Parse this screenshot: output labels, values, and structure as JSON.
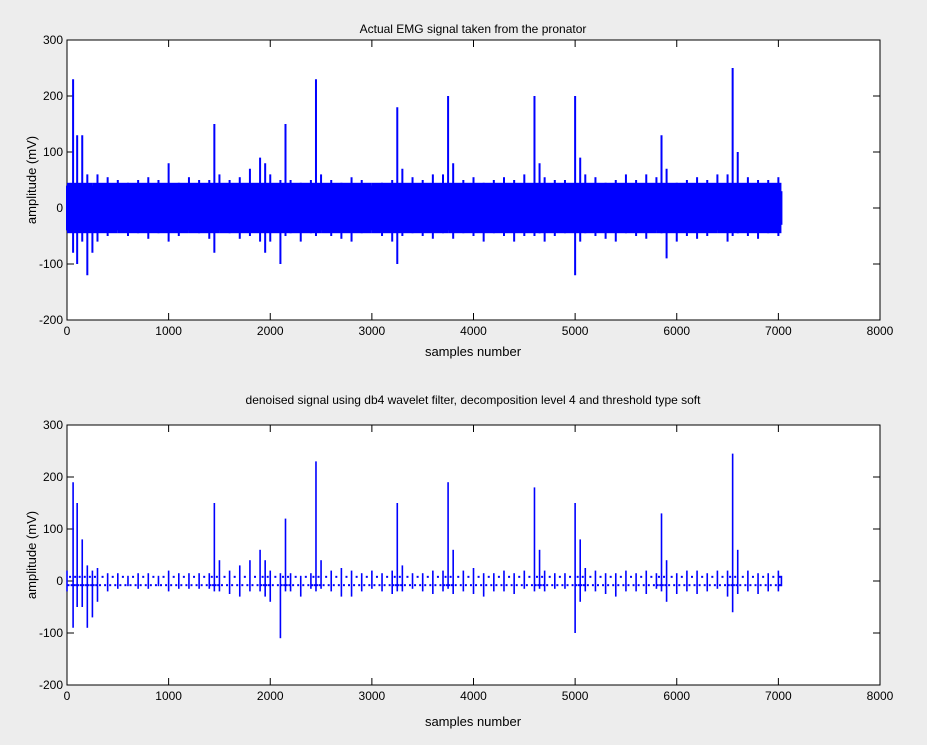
{
  "chart_data": [
    {
      "type": "line",
      "title": "Actual EMG signal taken from the pronator",
      "xlabel": "samples number",
      "ylabel": "amplitude (mV)",
      "xlim": [
        0,
        8000
      ],
      "ylim": [
        -200,
        300
      ],
      "xticks": [
        0,
        1000,
        2000,
        3000,
        4000,
        5000,
        6000,
        7000,
        8000
      ],
      "yticks": [
        -200,
        -100,
        0,
        100,
        200,
        300
      ],
      "grid": false,
      "color": "#0000ff",
      "style": "dense-line",
      "series": [
        {
          "x": [
            0,
            60,
            100,
            150,
            200,
            250,
            300,
            400,
            500,
            600,
            700,
            800,
            900,
            1000,
            1100,
            1200,
            1300,
            1400,
            1450,
            1500,
            1600,
            1700,
            1800,
            1900,
            1950,
            2000,
            2100,
            2150,
            2200,
            2300,
            2400,
            2450,
            2500,
            2600,
            2700,
            2800,
            2900,
            3000,
            3100,
            3200,
            3250,
            3300,
            3400,
            3500,
            3600,
            3700,
            3750,
            3800,
            3900,
            4000,
            4100,
            4200,
            4300,
            4400,
            4500,
            4600,
            4650,
            4700,
            4800,
            4900,
            5000,
            5050,
            5100,
            5200,
            5300,
            5400,
            5500,
            5600,
            5700,
            5800,
            5850,
            5900,
            6000,
            6100,
            6200,
            6300,
            6400,
            6500,
            6550,
            6600,
            6700,
            6800,
            6900,
            7000,
            7030
          ],
          "y_max": [
            40,
            230,
            130,
            130,
            60,
            40,
            60,
            55,
            50,
            45,
            50,
            55,
            50,
            80,
            45,
            55,
            50,
            50,
            150,
            60,
            50,
            55,
            70,
            90,
            80,
            60,
            50,
            150,
            50,
            45,
            50,
            230,
            60,
            50,
            45,
            55,
            50,
            40,
            45,
            50,
            180,
            70,
            55,
            50,
            60,
            60,
            200,
            80,
            50,
            55,
            45,
            50,
            55,
            50,
            60,
            200,
            80,
            55,
            50,
            50,
            200,
            90,
            60,
            55,
            45,
            50,
            60,
            50,
            60,
            55,
            130,
            70,
            45,
            50,
            55,
            50,
            60,
            60,
            250,
            100,
            55,
            50,
            50,
            55,
            30
          ],
          "y_min": [
            -40,
            -80,
            -100,
            -60,
            -120,
            -80,
            -60,
            -50,
            -40,
            -50,
            -45,
            -55,
            -45,
            -60,
            -50,
            -40,
            -45,
            -55,
            -80,
            -40,
            -45,
            -55,
            -50,
            -60,
            -80,
            -60,
            -100,
            -50,
            -45,
            -60,
            -45,
            -50,
            -40,
            -50,
            -55,
            -60,
            -45,
            -40,
            -50,
            -60,
            -100,
            -50,
            -45,
            -50,
            -55,
            -45,
            -40,
            -55,
            -45,
            -50,
            -60,
            -45,
            -50,
            -60,
            -50,
            -50,
            -45,
            -60,
            -50,
            -45,
            -120,
            -60,
            -45,
            -50,
            -55,
            -60,
            -45,
            -50,
            -55,
            -40,
            -45,
            -90,
            -60,
            -50,
            -55,
            -50,
            -40,
            -60,
            -50,
            -45,
            -50,
            -55,
            -45,
            -50,
            -30
          ]
        }
      ]
    },
    {
      "type": "scatter",
      "title": "denoised signal using db4 wavelet filter, decomposition level 4 and threshold type soft",
      "xlabel": "samples number",
      "ylabel": "amplitude (mV)",
      "xlim": [
        0,
        8000
      ],
      "ylim": [
        -200,
        300
      ],
      "xticks": [
        0,
        1000,
        2000,
        3000,
        4000,
        5000,
        6000,
        7000,
        8000
      ],
      "yticks": [
        -200,
        -100,
        0,
        100,
        200,
        300
      ],
      "grid": false,
      "color": "#0000ff",
      "style": "sparse-dots",
      "series": [
        {
          "x": [
            0,
            60,
            100,
            150,
            200,
            250,
            300,
            400,
            500,
            600,
            700,
            800,
            900,
            1000,
            1100,
            1200,
            1300,
            1400,
            1450,
            1500,
            1600,
            1700,
            1800,
            1900,
            1950,
            2000,
            2100,
            2150,
            2200,
            2300,
            2400,
            2450,
            2500,
            2600,
            2700,
            2800,
            2900,
            3000,
            3100,
            3200,
            3250,
            3300,
            3400,
            3500,
            3600,
            3700,
            3750,
            3800,
            3900,
            4000,
            4100,
            4200,
            4300,
            4400,
            4500,
            4600,
            4650,
            4700,
            4800,
            4900,
            5000,
            5050,
            5100,
            5200,
            5300,
            5400,
            5500,
            5600,
            5700,
            5800,
            5850,
            5900,
            6000,
            6100,
            6200,
            6300,
            6400,
            6500,
            6550,
            6600,
            6700,
            6800,
            6900,
            7000,
            7030
          ],
          "y_max": [
            20,
            190,
            150,
            80,
            30,
            20,
            25,
            15,
            15,
            10,
            15,
            15,
            10,
            20,
            15,
            15,
            15,
            15,
            150,
            40,
            20,
            30,
            40,
            60,
            40,
            20,
            15,
            120,
            15,
            10,
            15,
            230,
            40,
            20,
            25,
            20,
            15,
            20,
            15,
            20,
            150,
            30,
            15,
            15,
            20,
            20,
            190,
            60,
            20,
            25,
            15,
            15,
            20,
            15,
            20,
            180,
            60,
            20,
            15,
            15,
            150,
            80,
            25,
            20,
            15,
            15,
            20,
            15,
            20,
            15,
            130,
            40,
            15,
            20,
            20,
            15,
            20,
            20,
            245,
            60,
            20,
            15,
            15,
            20,
            10
          ],
          "y_min": [
            -20,
            -90,
            -50,
            -50,
            -90,
            -70,
            -40,
            -20,
            -15,
            -10,
            -15,
            -15,
            -10,
            -20,
            -15,
            -15,
            -15,
            -15,
            -20,
            -20,
            -25,
            -30,
            -20,
            -20,
            -30,
            -40,
            -110,
            -20,
            -20,
            -30,
            -15,
            -20,
            -15,
            -20,
            -30,
            -30,
            -20,
            -15,
            -20,
            -25,
            -20,
            -20,
            -15,
            -20,
            -25,
            -20,
            -15,
            -25,
            -20,
            -25,
            -30,
            -20,
            -20,
            -25,
            -15,
            -20,
            -15,
            -20,
            -15,
            -15,
            -100,
            -40,
            -20,
            -20,
            -25,
            -30,
            -20,
            -20,
            -25,
            -15,
            -20,
            -40,
            -25,
            -20,
            -25,
            -20,
            -15,
            -30,
            -60,
            -25,
            -20,
            -25,
            -20,
            -20,
            -10
          ]
        }
      ]
    }
  ]
}
